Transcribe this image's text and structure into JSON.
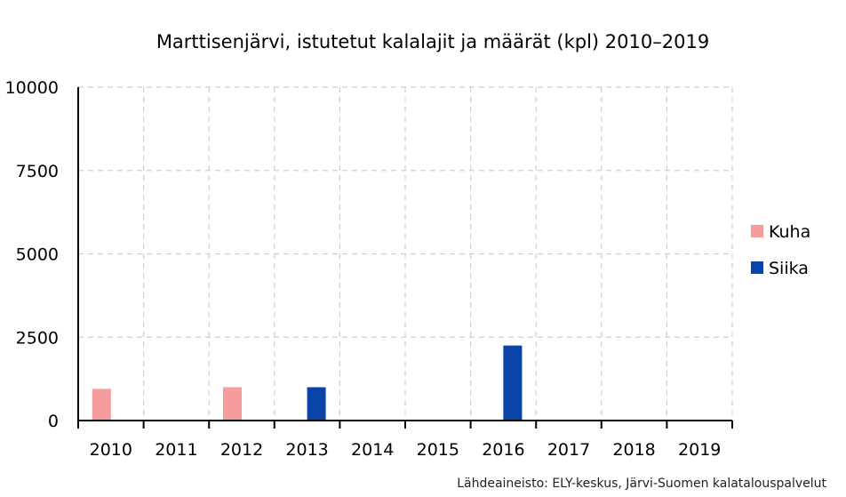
{
  "chart_data": {
    "type": "bar",
    "title": "Marttisenjärvi, istutetut kalalajit ja määrät (kpl) 2010–2019",
    "categories": [
      "2010",
      "2011",
      "2012",
      "2013",
      "2014",
      "2015",
      "2016",
      "2017",
      "2018",
      "2019"
    ],
    "series": [
      {
        "name": "Kuha",
        "color": "#f79c9c",
        "values": [
          950,
          0,
          1000,
          0,
          0,
          0,
          0,
          0,
          0,
          0
        ]
      },
      {
        "name": "Siika",
        "color": "#0b44a8",
        "values": [
          0,
          0,
          0,
          1000,
          0,
          0,
          2250,
          0,
          0,
          0
        ]
      }
    ],
    "ylim": [
      0,
      10000
    ],
    "yticks": [
      0,
      2500,
      5000,
      7500,
      10000
    ],
    "grid": true,
    "legend": "right",
    "source": "Lähdeaineisto: ELY-keskus, Järvi-Suomen kalatalouspalvelut"
  }
}
